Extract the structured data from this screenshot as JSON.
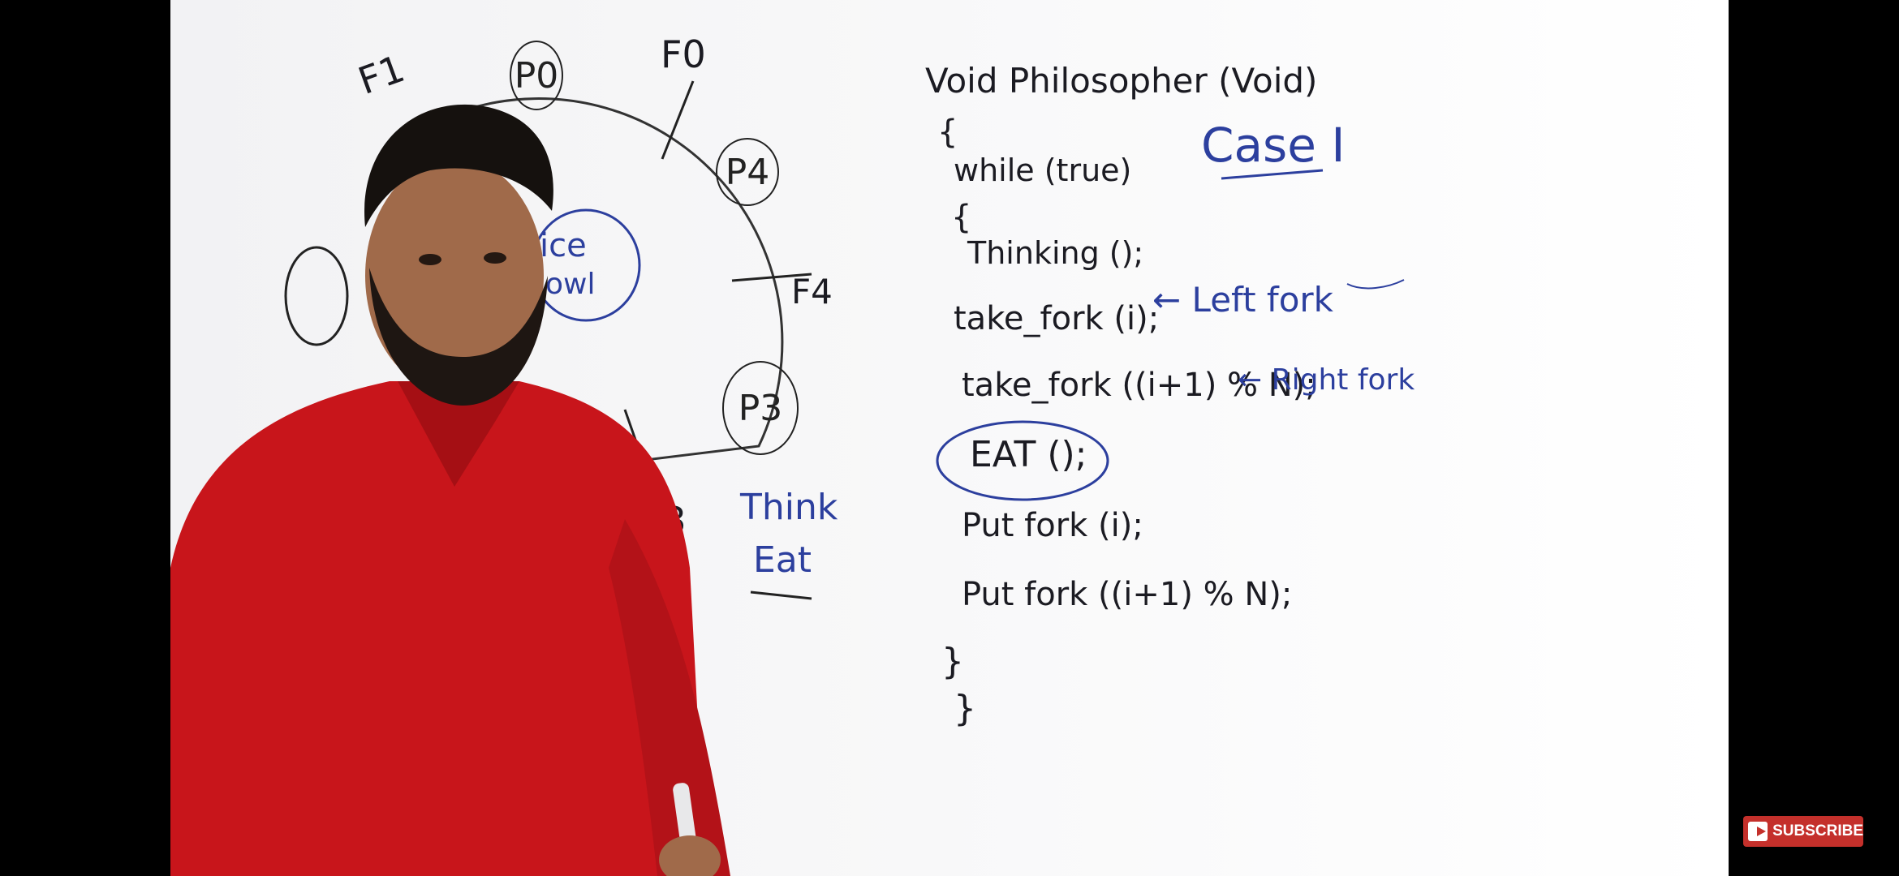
{
  "player": {
    "subscribe_label": "SUBSCRIBE"
  },
  "board": {
    "diagram": {
      "philosophers": [
        "P0",
        "P4",
        "P3"
      ],
      "forks": [
        "F1",
        "F0",
        "F4",
        "F3"
      ],
      "bowl_text": [
        "ice",
        "owl"
      ],
      "notes": [
        "Think",
        "Eat"
      ]
    },
    "case_label": "Case I",
    "code": [
      "Void Philosopher (Void)",
      "{",
      "while (true)",
      "{",
      "Thinking ();",
      "take_fork (i);",
      "take_fork ((i+1) % N);",
      "EAT ();",
      "Put fork (i);",
      "Put fork ((i+1) % N);",
      "}",
      "}"
    ],
    "annotations": {
      "left_fork": "← Left fork",
      "right_fork": "← Right fork"
    }
  }
}
